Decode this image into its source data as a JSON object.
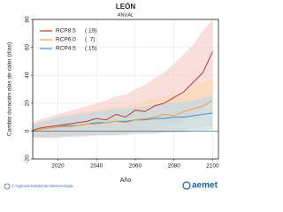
{
  "chart_data": {
    "type": "line",
    "title": "LEÓN",
    "subtitle": "ANUAL",
    "ylabel": "Cambio duración olas de calor (días)",
    "xlabel": "Año",
    "x": [
      2006,
      2010,
      2015,
      2020,
      2025,
      2030,
      2035,
      2040,
      2045,
      2050,
      2055,
      2060,
      2065,
      2070,
      2075,
      2080,
      2085,
      2090,
      2095,
      2100
    ],
    "series": [
      {
        "name": "RCP8.5",
        "count_label": "( 19)",
        "color": "#c0392b",
        "band_color": "#f6c6c6",
        "values": [
          0,
          2,
          3,
          4,
          5,
          6,
          7,
          9,
          8,
          12,
          10,
          15,
          14,
          18,
          20,
          24,
          28,
          35,
          42,
          57
        ],
        "low": [
          -5,
          -5,
          -5,
          -5,
          -4,
          -4,
          -4,
          -3,
          -3,
          -2,
          -2,
          0,
          0,
          2,
          3,
          5,
          8,
          12,
          16,
          22
        ],
        "high": [
          5,
          8,
          10,
          12,
          14,
          16,
          18,
          20,
          22,
          25,
          26,
          30,
          33,
          38,
          42,
          48,
          55,
          62,
          72,
          80
        ]
      },
      {
        "name": "RCP6.0",
        "count_label": "(  7)",
        "color": "#f0a040",
        "band_color": "#fad9ae",
        "values": [
          0,
          1,
          2,
          3,
          3,
          4,
          5,
          5,
          6,
          7,
          6,
          8,
          9,
          10,
          12,
          11,
          14,
          16,
          18,
          22
        ],
        "low": [
          -4,
          -4,
          -5,
          -4,
          -4,
          -4,
          -3,
          -3,
          -3,
          -3,
          -3,
          -2,
          -2,
          -1,
          -1,
          0,
          0,
          2,
          3,
          4
        ],
        "high": [
          4,
          6,
          8,
          10,
          12,
          13,
          14,
          15,
          16,
          18,
          17,
          20,
          22,
          23,
          25,
          26,
          28,
          32,
          35,
          38
        ]
      },
      {
        "name": "RCP4.5",
        "count_label": "( 15)",
        "color": "#3a8fc8",
        "band_color": "#b9d9ec",
        "values": [
          0,
          1,
          2,
          3,
          4,
          4,
          5,
          6,
          6,
          7,
          7,
          8,
          8,
          9,
          9,
          10,
          10,
          11,
          12,
          13
        ],
        "low": [
          -4,
          -4,
          -4,
          -4,
          -4,
          -3,
          -3,
          -3,
          -3,
          -3,
          -2,
          -2,
          -2,
          -2,
          -1,
          -1,
          -1,
          0,
          0,
          1
        ],
        "high": [
          4,
          6,
          8,
          10,
          11,
          12,
          13,
          14,
          15,
          16,
          16,
          17,
          18,
          19,
          20,
          20,
          21,
          22,
          24,
          26
        ]
      }
    ],
    "xlim": [
      2007,
      2103
    ],
    "xticks": [
      2020,
      2040,
      2060,
      2080,
      2100
    ],
    "ylim": [
      -20,
      80
    ],
    "yticks": [
      -20,
      0,
      20,
      40,
      60,
      80
    ],
    "grid": true
  },
  "footer": {
    "credit": "© Agencia Estatal de Meteorología",
    "logo": "aemet"
  }
}
